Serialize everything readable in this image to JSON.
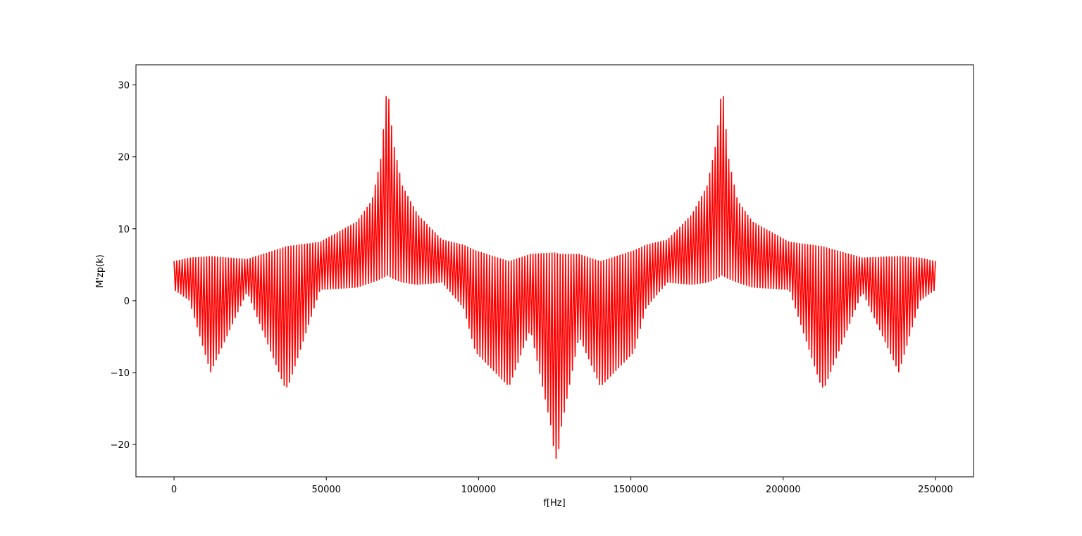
{
  "chart_data": {
    "type": "line",
    "title": "",
    "xlabel": "f[Hz]",
    "ylabel": "M'zp(k)",
    "xlim": [
      -12500,
      262500
    ],
    "ylim": [
      -24.5,
      32.8
    ],
    "xticks": [
      0,
      50000,
      100000,
      150000,
      200000,
      250000
    ],
    "xtick_labels": [
      "0",
      "50000",
      "100000",
      "150000",
      "200000",
      "250000"
    ],
    "yticks": [
      -20,
      -10,
      0,
      10,
      20,
      30
    ],
    "ytick_labels": [
      "−20",
      "−10",
      "0",
      "10",
      "20",
      "30"
    ],
    "grid": false,
    "legend": "none",
    "series": [
      {
        "color": "#ff0000",
        "description_points": {
          "x": [
            0,
            5000,
            12000,
            24000,
            36500,
            37500,
            48000,
            60000,
            65000,
            68000,
            70000,
            72000,
            75000,
            80000,
            88000,
            95000,
            99000,
            110000,
            117000,
            124000,
            125000,
            126000,
            127000,
            133000,
            140000,
            151000,
            155000,
            162000,
            170000,
            175000,
            178000,
            180000,
            182000,
            185000,
            190000,
            202000,
            212500,
            213500,
            226000,
            238000,
            245000,
            250000
          ],
          "upper": [
            5.5,
            6.0,
            6.2,
            5.8,
            7.5,
            7.6,
            8.2,
            11.0,
            14.0,
            20.0,
            30.3,
            22.0,
            16.0,
            12.0,
            8.5,
            7.8,
            7.0,
            5.5,
            6.5,
            6.7,
            6.7,
            6.6,
            6.5,
            6.5,
            5.5,
            7.0,
            7.8,
            8.5,
            12.0,
            16.0,
            22.0,
            30.3,
            20.0,
            14.0,
            11.0,
            8.2,
            7.6,
            7.5,
            6.0,
            6.2,
            6.0,
            5.5
          ],
          "lower": [
            1.5,
            0,
            -10.0,
            1.2,
            -12.2,
            -12.0,
            1.5,
            1.8,
            2.5,
            3.0,
            3.5,
            3.0,
            2.5,
            2.2,
            2.5,
            -1.0,
            -7.2,
            -12.0,
            -4.0,
            -18.0,
            -22.0,
            -22.0,
            -18.0,
            -5.0,
            -12.0,
            -7.2,
            -1.0,
            2.5,
            2.2,
            2.5,
            3.0,
            3.5,
            3.0,
            2.5,
            1.8,
            1.5,
            -12.0,
            -12.2,
            1.2,
            -10.0,
            0,
            1.5
          ]
        }
      }
    ]
  }
}
